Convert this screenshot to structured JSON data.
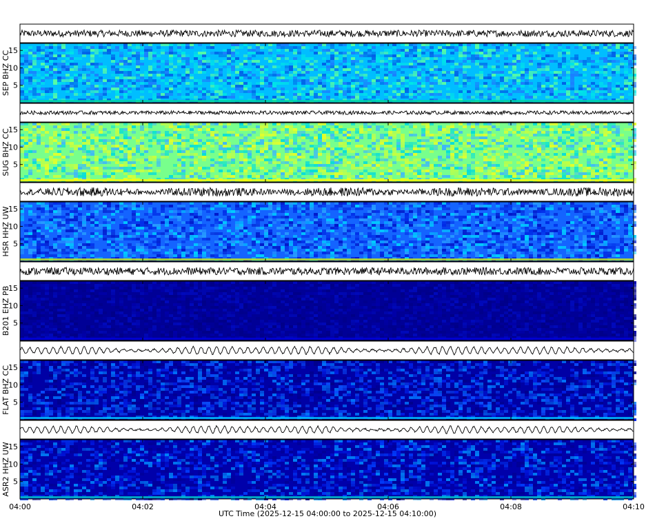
{
  "chart_data": {
    "type": "heatmap",
    "x_ticks": [
      "04:00",
      "04:02",
      "04:04",
      "04:06",
      "04:08",
      "04:10"
    ],
    "xlabel": "UTC Time (2025-12-15 04:00:00 to 2025-12-15 04:10:00)",
    "xlim": [
      "04:00",
      "04:10"
    ],
    "ylim": [
      0,
      17
    ],
    "y_ticks": [
      5,
      10,
      15
    ],
    "colormap": "jet",
    "channels": [
      {
        "label": "SEP BHZ CC",
        "palette": "cyan-blue",
        "trace_amplitude": 0.45,
        "trace_style": "noise"
      },
      {
        "label": "SUG BHZ CC",
        "palette": "yellow-green",
        "trace_amplitude": 0.25,
        "trace_style": "noise"
      },
      {
        "label": "HSR HHZ UW",
        "palette": "blue-cyan",
        "trace_amplitude": 0.55,
        "trace_style": "noise-bursty"
      },
      {
        "label": "B201 EHZ PB",
        "palette": "dark-navy",
        "trace_amplitude": 0.5,
        "trace_style": "noise"
      },
      {
        "label": "FLAT BHZ CC",
        "palette": "navy-blue",
        "trace_amplitude": 0.6,
        "trace_style": "wave"
      },
      {
        "label": "ASR2 HHZ UW",
        "palette": "navy-streak",
        "trace_amplitude": 0.55,
        "trace_style": "wave"
      }
    ]
  }
}
